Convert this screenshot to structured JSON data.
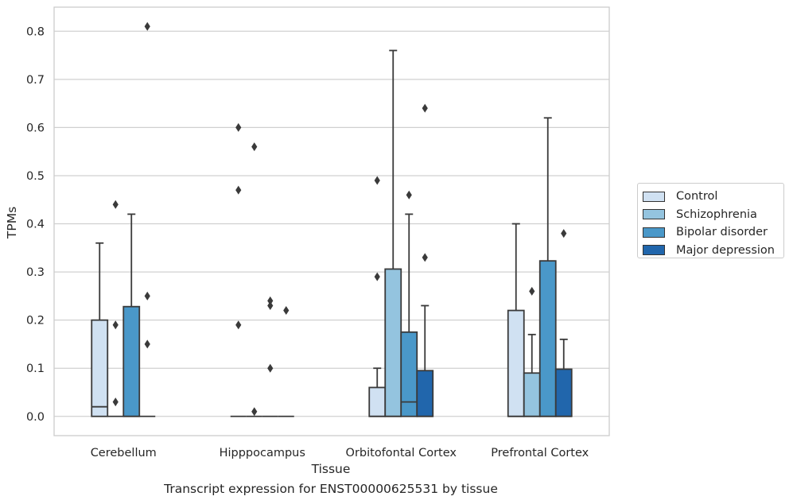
{
  "chart_data": {
    "type": "box",
    "xlabel": "Tissue",
    "ylabel": "TPMs",
    "caption": "Transcript expression for ENST00000625531 by tissue",
    "ylim": [
      -0.04,
      0.85
    ],
    "yticks": [
      "0.0",
      "0.1",
      "0.2",
      "0.3",
      "0.4",
      "0.5",
      "0.6",
      "0.7",
      "0.8"
    ],
    "grid": true,
    "legend_position": "right",
    "categories": [
      "Cerebellum",
      "Hipppocampus",
      "Orbitofontal Cortex",
      "Prefrontal Cortex"
    ],
    "series": [
      {
        "name": "Control",
        "color": "#d0e1f2",
        "boxes": [
          {
            "q1": 0,
            "median": 0.02,
            "q3": 0.2,
            "whisker_low": 0,
            "whisker_high": 0.36,
            "outliers": []
          },
          {
            "q1": 0,
            "median": 0,
            "q3": 0,
            "whisker_low": 0,
            "whisker_high": 0,
            "outliers": [
              0.6,
              0.47,
              0.19
            ]
          },
          {
            "q1": 0,
            "median": 0,
            "q3": 0.06,
            "whisker_low": 0,
            "whisker_high": 0.1,
            "outliers": [
              0.49,
              0.29
            ]
          },
          {
            "q1": 0,
            "median": 0,
            "q3": 0.22,
            "whisker_low": 0,
            "whisker_high": 0.4,
            "outliers": []
          }
        ]
      },
      {
        "name": "Schizophrenia",
        "color": "#94c4df",
        "boxes": [
          {
            "q1": 0,
            "median": 0,
            "q3": 0,
            "whisker_low": 0,
            "whisker_high": 0,
            "outliers": [
              0.44,
              0.19,
              0.03
            ]
          },
          {
            "q1": 0,
            "median": 0,
            "q3": 0,
            "whisker_low": 0,
            "whisker_high": 0,
            "outliers": [
              0.56,
              0.01
            ]
          },
          {
            "q1": 0,
            "median": 0,
            "q3": 0.306,
            "whisker_low": 0,
            "whisker_high": 0.76,
            "outliers": []
          },
          {
            "q1": 0,
            "median": 0,
            "q3": 0.09,
            "whisker_low": 0,
            "whisker_high": 0.17,
            "outliers": [
              0.26
            ]
          }
        ]
      },
      {
        "name": "Bipolar disorder",
        "color": "#4a98c9",
        "boxes": [
          {
            "q1": 0,
            "median": 0,
            "q3": 0.228,
            "whisker_low": 0,
            "whisker_high": 0.42,
            "outliers": []
          },
          {
            "q1": 0,
            "median": 0,
            "q3": 0,
            "whisker_low": 0,
            "whisker_high": 0,
            "outliers": [
              0.24,
              0.23,
              0.1
            ]
          },
          {
            "q1": 0,
            "median": 0.03,
            "q3": 0.175,
            "whisker_low": 0,
            "whisker_high": 0.42,
            "outliers": [
              0.46
            ]
          },
          {
            "q1": 0,
            "median": 0,
            "q3": 0.323,
            "whisker_low": 0,
            "whisker_high": 0.62,
            "outliers": []
          }
        ]
      },
      {
        "name": "Major depression",
        "color": "#2166ac",
        "boxes": [
          {
            "q1": 0,
            "median": 0,
            "q3": 0,
            "whisker_low": 0,
            "whisker_high": 0,
            "outliers": [
              0.81,
              0.25,
              0.15
            ]
          },
          {
            "q1": 0,
            "median": 0,
            "q3": 0,
            "whisker_low": 0,
            "whisker_high": 0,
            "outliers": [
              0.22
            ]
          },
          {
            "q1": 0,
            "median": 0,
            "q3": 0.095,
            "whisker_low": 0,
            "whisker_high": 0.23,
            "outliers": [
              0.64,
              0.33
            ]
          },
          {
            "q1": 0,
            "median": 0,
            "q3": 0.098,
            "whisker_low": 0,
            "whisker_high": 0.16,
            "outliers": [
              0.38
            ]
          }
        ]
      }
    ]
  }
}
